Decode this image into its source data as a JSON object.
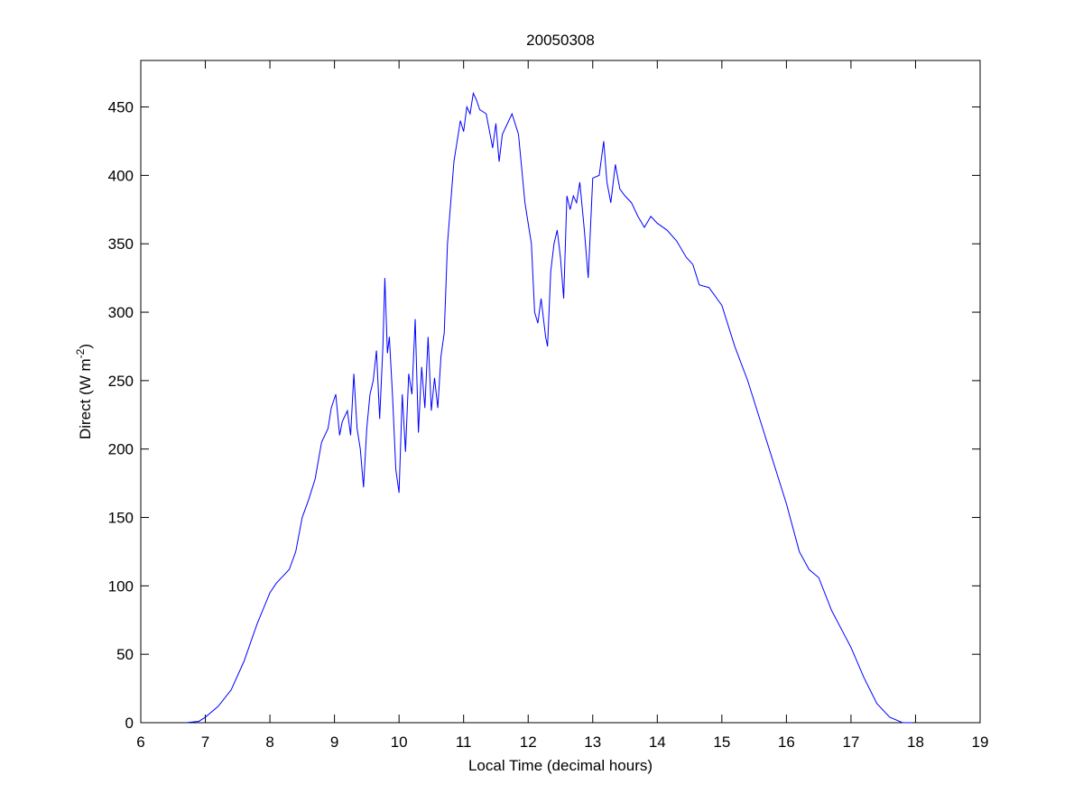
{
  "chart_data": {
    "type": "line",
    "title": "20050308",
    "xlabel": "Local Time (decimal hours)",
    "ylabel": {
      "main": "Direct (W m",
      "sup": "-2",
      "end": ")"
    },
    "xlim": [
      6,
      19
    ],
    "ylim": [
      0,
      484
    ],
    "xticks": [
      6,
      7,
      8,
      9,
      10,
      11,
      12,
      13,
      14,
      15,
      16,
      17,
      18,
      19
    ],
    "yticks": [
      0,
      50,
      100,
      150,
      200,
      250,
      300,
      350,
      400,
      450
    ],
    "grid": false,
    "series": [
      {
        "color": "#0000ff",
        "x": [
          6.7,
          6.9,
          7.0,
          7.2,
          7.4,
          7.6,
          7.8,
          8.0,
          8.1,
          8.3,
          8.4,
          8.5,
          8.6,
          8.7,
          8.8,
          8.9,
          8.95,
          9.02,
          9.08,
          9.12,
          9.2,
          9.25,
          9.3,
          9.35,
          9.4,
          9.45,
          9.5,
          9.55,
          9.6,
          9.65,
          9.7,
          9.75,
          9.78,
          9.82,
          9.85,
          9.9,
          9.95,
          10.0,
          10.05,
          10.1,
          10.15,
          10.2,
          10.25,
          10.3,
          10.35,
          10.4,
          10.45,
          10.5,
          10.55,
          10.6,
          10.65,
          10.7,
          10.75,
          10.85,
          10.95,
          11.0,
          11.05,
          11.1,
          11.15,
          11.2,
          11.25,
          11.35,
          11.45,
          11.5,
          11.55,
          11.6,
          11.7,
          11.75,
          11.85,
          11.95,
          12.05,
          12.1,
          12.15,
          12.2,
          12.27,
          12.3,
          12.35,
          12.4,
          12.45,
          12.5,
          12.55,
          12.6,
          12.65,
          12.7,
          12.75,
          12.8,
          12.87,
          12.93,
          13.0,
          13.1,
          13.17,
          13.22,
          13.28,
          13.35,
          13.42,
          13.5,
          13.6,
          13.7,
          13.8,
          13.9,
          14.0,
          14.15,
          14.3,
          14.45,
          14.55,
          14.65,
          14.8,
          15.0,
          15.2,
          15.4,
          15.6,
          15.8,
          16.0,
          16.2,
          16.35,
          16.5,
          16.7,
          16.9,
          17.0,
          17.2,
          17.4,
          17.6,
          17.8,
          17.95
        ],
        "values": [
          0,
          1,
          4,
          12,
          24,
          45,
          72,
          95,
          102,
          112,
          125,
          150,
          163,
          178,
          205,
          215,
          230,
          240,
          210,
          220,
          228,
          210,
          255,
          215,
          200,
          172,
          215,
          240,
          250,
          272,
          222,
          275,
          325,
          270,
          282,
          238,
          185,
          168,
          240,
          198,
          255,
          240,
          295,
          212,
          260,
          230,
          282,
          228,
          252,
          230,
          268,
          285,
          350,
          410,
          440,
          432,
          450,
          445,
          460,
          455,
          448,
          445,
          420,
          438,
          410,
          430,
          440,
          445,
          430,
          380,
          350,
          300,
          292,
          310,
          282,
          275,
          330,
          350,
          360,
          340,
          310,
          385,
          375,
          385,
          380,
          395,
          360,
          325,
          398,
          400,
          425,
          395,
          380,
          408,
          390,
          385,
          380,
          370,
          362,
          370,
          365,
          360,
          352,
          340,
          335,
          320,
          318,
          305,
          275,
          250,
          220,
          190,
          160,
          125,
          112,
          106,
          82,
          64,
          55,
          33,
          14,
          4,
          0,
          0
        ]
      }
    ]
  }
}
